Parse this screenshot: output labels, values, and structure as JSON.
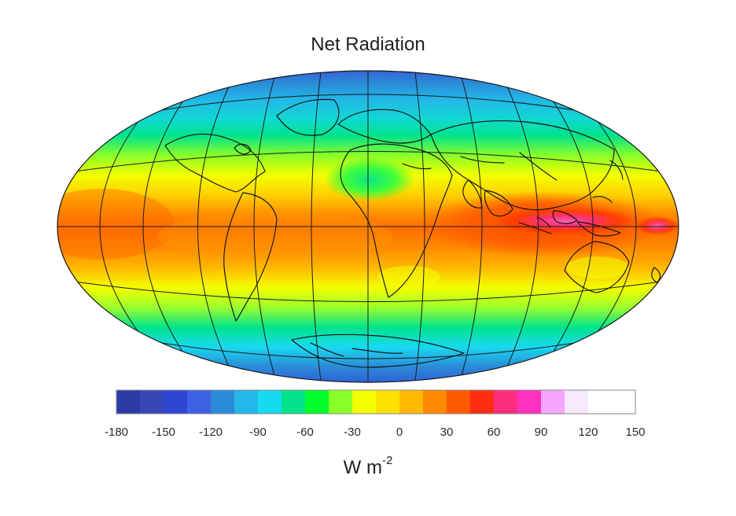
{
  "title": "Net Radiation",
  "legend": {
    "ticks": [
      "-180",
      "-150",
      "-120",
      "-90",
      "-60",
      "-30",
      "0",
      "30",
      "60",
      "90",
      "120",
      "150"
    ],
    "units_base": "W m",
    "units_exp": "-2",
    "colors": [
      "#2c3ca5",
      "#3846b7",
      "#2f46d3",
      "#3f61e6",
      "#2b8ad8",
      "#23b7e8",
      "#17d9f0",
      "#00e38b",
      "#00ff2b",
      "#8aff28",
      "#f3ff00",
      "#ffe100",
      "#ffb800",
      "#ff8800",
      "#ff5a00",
      "#ff2d12",
      "#ff2d7d",
      "#ff31be",
      "#f7a6ff",
      "#f7e7ff"
    ]
  },
  "map": {
    "projection": "Hammer-like ellipse",
    "grid_visible": true,
    "equator_line": true
  }
}
